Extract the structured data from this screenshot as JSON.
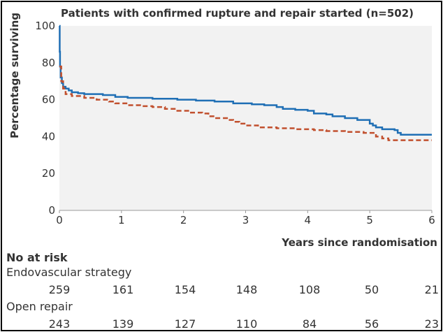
{
  "chart_data": {
    "type": "line",
    "title": "Patients with confirmed rupture and repair started (n=502)",
    "xlabel": "Years since randomisation",
    "ylabel": "Percentage surviving",
    "xlim": [
      0,
      6
    ],
    "ylim": [
      0,
      100
    ],
    "x_ticks": [
      "0",
      "1",
      "2",
      "3",
      "4",
      "5",
      "6"
    ],
    "y_ticks": [
      "0",
      "20",
      "40",
      "60",
      "80",
      "100"
    ],
    "grid": false,
    "series": [
      {
        "name": "Endovascular strategy",
        "color": "#1f6fb5",
        "style": "solid",
        "steps": [
          [
            0,
            100
          ],
          [
            0.005,
            86
          ],
          [
            0.01,
            78
          ],
          [
            0.02,
            72
          ],
          [
            0.04,
            69
          ],
          [
            0.06,
            67
          ],
          [
            0.1,
            66
          ],
          [
            0.15,
            65
          ],
          [
            0.2,
            64
          ],
          [
            0.3,
            63.5
          ],
          [
            0.4,
            63
          ],
          [
            0.7,
            62.5
          ],
          [
            0.9,
            61.5
          ],
          [
            1.1,
            61
          ],
          [
            1.5,
            60.5
          ],
          [
            1.9,
            60
          ],
          [
            2.2,
            59.5
          ],
          [
            2.5,
            59
          ],
          [
            2.8,
            58
          ],
          [
            3.1,
            57.5
          ],
          [
            3.3,
            57
          ],
          [
            3.5,
            56
          ],
          [
            3.6,
            55
          ],
          [
            3.8,
            54.5
          ],
          [
            4.0,
            54
          ],
          [
            4.1,
            52.5
          ],
          [
            4.3,
            52
          ],
          [
            4.4,
            51
          ],
          [
            4.6,
            50
          ],
          [
            4.8,
            49
          ],
          [
            5.0,
            47
          ],
          [
            5.05,
            46
          ],
          [
            5.1,
            45
          ],
          [
            5.2,
            44
          ],
          [
            5.4,
            43.5
          ],
          [
            5.45,
            42
          ],
          [
            5.5,
            41
          ],
          [
            6.0,
            41
          ]
        ]
      },
      {
        "name": "Open repair",
        "color": "#c1502e",
        "style": "dashed",
        "steps": [
          [
            0,
            78
          ],
          [
            0.03,
            70
          ],
          [
            0.06,
            66
          ],
          [
            0.1,
            63
          ],
          [
            0.2,
            62
          ],
          [
            0.4,
            61
          ],
          [
            0.6,
            60
          ],
          [
            0.8,
            59
          ],
          [
            0.9,
            58
          ],
          [
            1.1,
            57
          ],
          [
            1.3,
            56.5
          ],
          [
            1.5,
            56
          ],
          [
            1.7,
            55
          ],
          [
            1.9,
            54
          ],
          [
            2.1,
            53
          ],
          [
            2.3,
            52.5
          ],
          [
            2.4,
            51
          ],
          [
            2.5,
            50
          ],
          [
            2.7,
            49
          ],
          [
            2.8,
            48
          ],
          [
            2.9,
            47
          ],
          [
            3.0,
            46
          ],
          [
            3.2,
            45
          ],
          [
            3.5,
            44.5
          ],
          [
            3.8,
            44
          ],
          [
            4.1,
            43.5
          ],
          [
            4.3,
            43
          ],
          [
            4.6,
            42.5
          ],
          [
            4.9,
            42
          ],
          [
            5.1,
            40
          ],
          [
            5.2,
            39
          ],
          [
            5.3,
            38
          ],
          [
            6.0,
            38
          ]
        ]
      }
    ]
  },
  "risk_table": {
    "heading": "No at risk",
    "groups": [
      {
        "label": "Endovascular strategy",
        "counts": [
          "259",
          "161",
          "154",
          "148",
          "108",
          "50",
          "21"
        ]
      },
      {
        "label": "Open repair",
        "counts": [
          "243",
          "139",
          "127",
          "110",
          "84",
          "56",
          "23"
        ]
      }
    ]
  }
}
